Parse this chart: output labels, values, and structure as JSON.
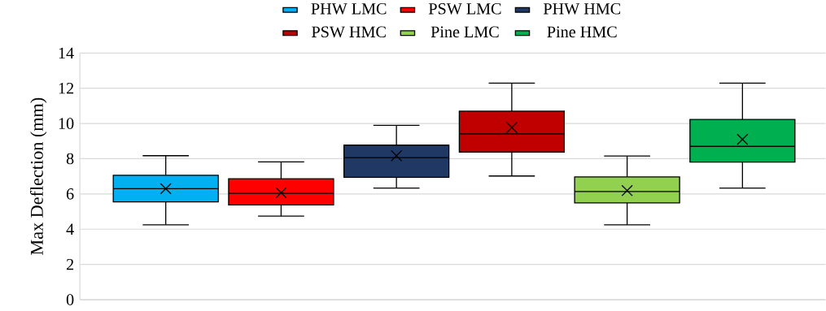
{
  "chart_data": {
    "type": "box",
    "ylabel": "Max Deflection (mm)",
    "categories": [
      null
    ],
    "ylim": [
      0,
      14
    ],
    "yticks": [
      0,
      2,
      4,
      6,
      8,
      10,
      12,
      14
    ],
    "grid": "y",
    "legend": "top",
    "marker": "cross",
    "series": [
      {
        "name": "PHW LMC",
        "color": "#00b0f0",
        "boxes": [
          {
            "low": 4.25,
            "q1": 5.55,
            "median": 6.3,
            "q3": 7.06,
            "high": 8.17,
            "mean": 6.3
          }
        ]
      },
      {
        "name": "PSW LMC",
        "color": "#ff0000",
        "boxes": [
          {
            "low": 4.74,
            "q1": 5.38,
            "median": 6.04,
            "q3": 6.86,
            "high": 7.82,
            "mean": 6.07
          }
        ]
      },
      {
        "name": "PHW HMC",
        "color": "#203864",
        "boxes": [
          {
            "low": 6.33,
            "q1": 6.94,
            "median": 8.06,
            "q3": 8.77,
            "high": 9.89,
            "mean": 8.17
          }
        ]
      },
      {
        "name": "PSW HMC",
        "color": "#c00000",
        "boxes": [
          {
            "low": 7.02,
            "q1": 8.38,
            "median": 9.41,
            "q3": 10.7,
            "high": 12.29,
            "mean": 9.77
          }
        ]
      },
      {
        "name": "Pine LMC",
        "color": "#92d050",
        "boxes": [
          {
            "low": 4.25,
            "q1": 5.49,
            "median": 6.14,
            "q3": 6.97,
            "high": 8.15,
            "mean": 6.19
          }
        ]
      },
      {
        "name": "Pine HMC",
        "color": "#00b050",
        "boxes": [
          {
            "low": 6.33,
            "q1": 7.81,
            "median": 8.7,
            "q3": 10.23,
            "high": 12.29,
            "mean": 9.1
          }
        ]
      }
    ]
  }
}
